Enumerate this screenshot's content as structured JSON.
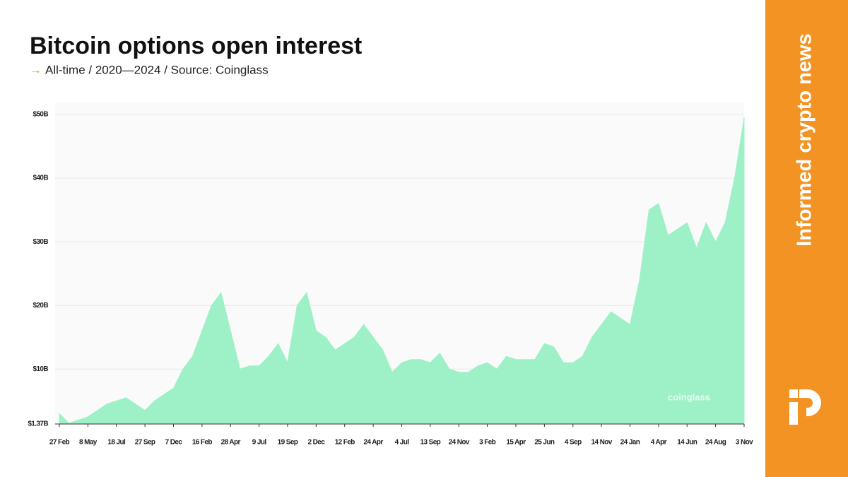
{
  "chart_data": {
    "type": "area",
    "title": "Bitcoin options open interest",
    "subtitle_arrow": "→",
    "subtitle": "All-time / 2020—2024 / Source: Coinglass",
    "watermark": "coinglass",
    "brand_tagline": "Informed crypto news",
    "color": "#9ef1c6",
    "grid": true,
    "categories": [
      "27 Feb",
      null,
      null,
      "8 May",
      null,
      null,
      "18 Jul",
      null,
      null,
      "27 Sep",
      null,
      null,
      "7 Dec",
      null,
      null,
      "16 Feb",
      null,
      null,
      "28 Apr",
      null,
      null,
      "9 Jul",
      null,
      null,
      "19 Sep",
      null,
      null,
      "2 Dec",
      null,
      null,
      "12 Feb",
      null,
      null,
      "24 Apr",
      null,
      null,
      "4 Jul",
      null,
      null,
      "13 Sep",
      null,
      null,
      "24 Nov",
      null,
      null,
      "3 Feb",
      null,
      null,
      "15 Apr",
      null,
      null,
      "25 Jun",
      null,
      null,
      "4 Sep",
      null,
      null,
      "14 Nov",
      null,
      null,
      "24 Jan",
      null,
      null,
      "4 Apr",
      null,
      null,
      "14 Jun",
      null,
      null,
      "24 Aug",
      null,
      null,
      "3 Nov"
    ],
    "values": [
      3,
      1.5,
      2,
      2.5,
      3.5,
      4.5,
      5,
      5.5,
      4.5,
      3.5,
      5,
      6,
      7,
      10,
      12,
      16,
      20,
      22,
      16,
      10,
      10.5,
      10.5,
      12,
      14,
      11,
      20,
      22,
      16,
      15,
      13,
      14,
      15,
      17,
      15,
      13,
      9.5,
      11,
      11.5,
      11.5,
      11,
      12.5,
      10,
      9.5,
      9.5,
      10.5,
      11,
      10,
      12,
      11.5,
      11.5,
      11.5,
      14,
      13.5,
      11,
      11,
      12,
      15,
      17,
      19,
      18,
      17,
      24,
      35,
      36,
      31,
      32,
      33,
      29,
      33,
      30,
      33,
      40,
      49.5
    ],
    "ylim": [
      1.37,
      50
    ],
    "yticks": [
      {
        "value": 1.37,
        "label": "$1.37B"
      },
      {
        "value": 10,
        "label": "$10B"
      },
      {
        "value": 20,
        "label": "$20B"
      },
      {
        "value": 30,
        "label": "$30B"
      },
      {
        "value": 40,
        "label": "$40B"
      },
      {
        "value": 50,
        "label": "$50B"
      }
    ]
  }
}
